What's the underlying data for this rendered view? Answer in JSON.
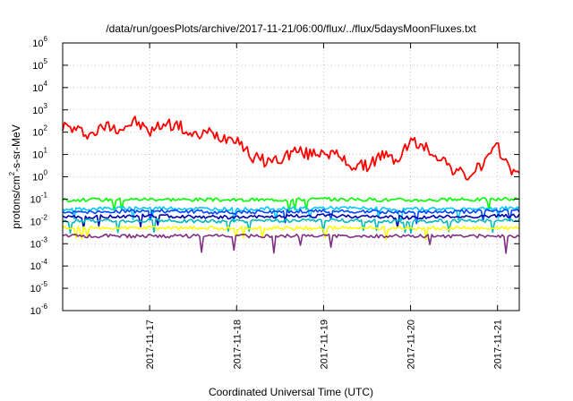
{
  "chart_data": {
    "type": "line",
    "title": "/data/run/goesPlots/archive/2017-11-21/06:00/flux/../flux/5daysMoonFluxes.txt",
    "xlabel": "Coordinated Universal Time (UTC)",
    "ylabel": "protons/cm²-s-sr-MeV",
    "yscale": "log",
    "ylim": [
      1e-06,
      1000000.0
    ],
    "xlim": [
      "2017-11-16 00:00",
      "2017-11-21 06:00"
    ],
    "x_tick_labels": [
      "2017-11-17",
      "2017-11-18",
      "2017-11-19",
      "2017-11-20",
      "2017-11-21"
    ],
    "y_tick_labels": [
      {
        "base": "10",
        "exp": "-6"
      },
      {
        "base": "10",
        "exp": "-5"
      },
      {
        "base": "10",
        "exp": "-4"
      },
      {
        "base": "10",
        "exp": "-3"
      },
      {
        "base": "10",
        "exp": "-2"
      },
      {
        "base": "10",
        "exp": "-1"
      },
      {
        "base": "10",
        "exp": "0"
      },
      {
        "base": "10",
        "exp": "1"
      },
      {
        "base": "10",
        "exp": "2"
      },
      {
        "base": "10",
        "exp": "3"
      },
      {
        "base": "10",
        "exp": "4"
      },
      {
        "base": "10",
        "exp": "5"
      },
      {
        "base": "10",
        "exp": "6"
      }
    ],
    "grid": true,
    "series": [
      {
        "color": "#ff0000",
        "x": [
          "2017-11-16 00:00",
          "2017-11-16 04:00",
          "2017-11-16 08:00",
          "2017-11-16 12:00",
          "2017-11-16 16:00",
          "2017-11-16 20:00",
          "2017-11-17 00:00",
          "2017-11-17 04:00",
          "2017-11-17 08:00",
          "2017-11-17 12:00",
          "2017-11-17 16:00",
          "2017-11-17 20:00",
          "2017-11-18 00:00",
          "2017-11-18 04:00",
          "2017-11-18 08:00",
          "2017-11-18 12:00",
          "2017-11-18 16:00",
          "2017-11-18 20:00",
          "2017-11-19 00:00",
          "2017-11-19 04:00",
          "2017-11-19 08:00",
          "2017-11-19 12:00",
          "2017-11-19 16:00",
          "2017-11-19 20:00",
          "2017-11-20 00:00",
          "2017-11-20 04:00",
          "2017-11-20 08:00",
          "2017-11-20 12:00",
          "2017-11-20 16:00",
          "2017-11-20 20:00",
          "2017-11-21 00:00",
          "2017-11-21 04:00",
          "2017-11-21 06:00"
        ],
        "values": [
          200,
          120,
          80,
          200,
          150,
          300,
          100,
          250,
          200,
          60,
          100,
          60,
          60,
          8,
          5,
          6,
          15,
          10,
          15,
          8,
          3,
          3,
          10,
          5,
          40,
          20,
          8,
          2,
          1,
          4,
          20,
          2,
          1
        ]
      },
      {
        "color": "#00ff00",
        "x": [
          "2017-11-16 00:00",
          "2017-11-17 00:00",
          "2017-11-18 00:00",
          "2017-11-19 00:00",
          "2017-11-20 00:00",
          "2017-11-21 06:00"
        ],
        "values": [
          0.09,
          0.1,
          0.09,
          0.1,
          0.09,
          0.1
        ]
      },
      {
        "color": "#00c8ff",
        "x": [
          "2017-11-16 00:00",
          "2017-11-17 00:00",
          "2017-11-18 00:00",
          "2017-11-19 00:00",
          "2017-11-20 00:00",
          "2017-11-21 06:00"
        ],
        "values": [
          0.035,
          0.04,
          0.035,
          0.04,
          0.035,
          0.04
        ]
      },
      {
        "color": "#0044ff",
        "x": [
          "2017-11-16 00:00",
          "2017-11-17 00:00",
          "2017-11-18 00:00",
          "2017-11-19 00:00",
          "2017-11-20 00:00",
          "2017-11-21 06:00"
        ],
        "values": [
          0.025,
          0.03,
          0.025,
          0.03,
          0.025,
          0.03
        ]
      },
      {
        "color": "#0000aa",
        "x": [
          "2017-11-16 00:00",
          "2017-11-17 00:00",
          "2017-11-18 00:00",
          "2017-11-19 00:00",
          "2017-11-20 00:00",
          "2017-11-21 06:00"
        ],
        "values": [
          0.015,
          0.018,
          0.015,
          0.018,
          0.015,
          0.018
        ]
      },
      {
        "color": "#00bbbb",
        "x": [
          "2017-11-16 00:00",
          "2017-11-17 00:00",
          "2017-11-18 00:00",
          "2017-11-19 00:00",
          "2017-11-20 00:00",
          "2017-11-21 06:00"
        ],
        "values": [
          0.01,
          0.011,
          0.01,
          0.011,
          0.01,
          0.011
        ]
      },
      {
        "color": "#ffff00",
        "x": [
          "2017-11-16 00:00",
          "2017-11-17 00:00",
          "2017-11-18 00:00",
          "2017-11-19 00:00",
          "2017-11-20 00:00",
          "2017-11-21 06:00"
        ],
        "values": [
          0.005,
          0.005,
          0.005,
          0.005,
          0.005,
          0.005
        ]
      },
      {
        "color": "#7f2f7f",
        "x": [
          "2017-11-16 00:00",
          "2017-11-17 00:00",
          "2017-11-18 00:00",
          "2017-11-19 00:00",
          "2017-11-20 00:00",
          "2017-11-21 06:00"
        ],
        "values": [
          0.0022,
          0.0022,
          0.0022,
          0.0022,
          0.0022,
          0.0022
        ]
      }
    ]
  }
}
